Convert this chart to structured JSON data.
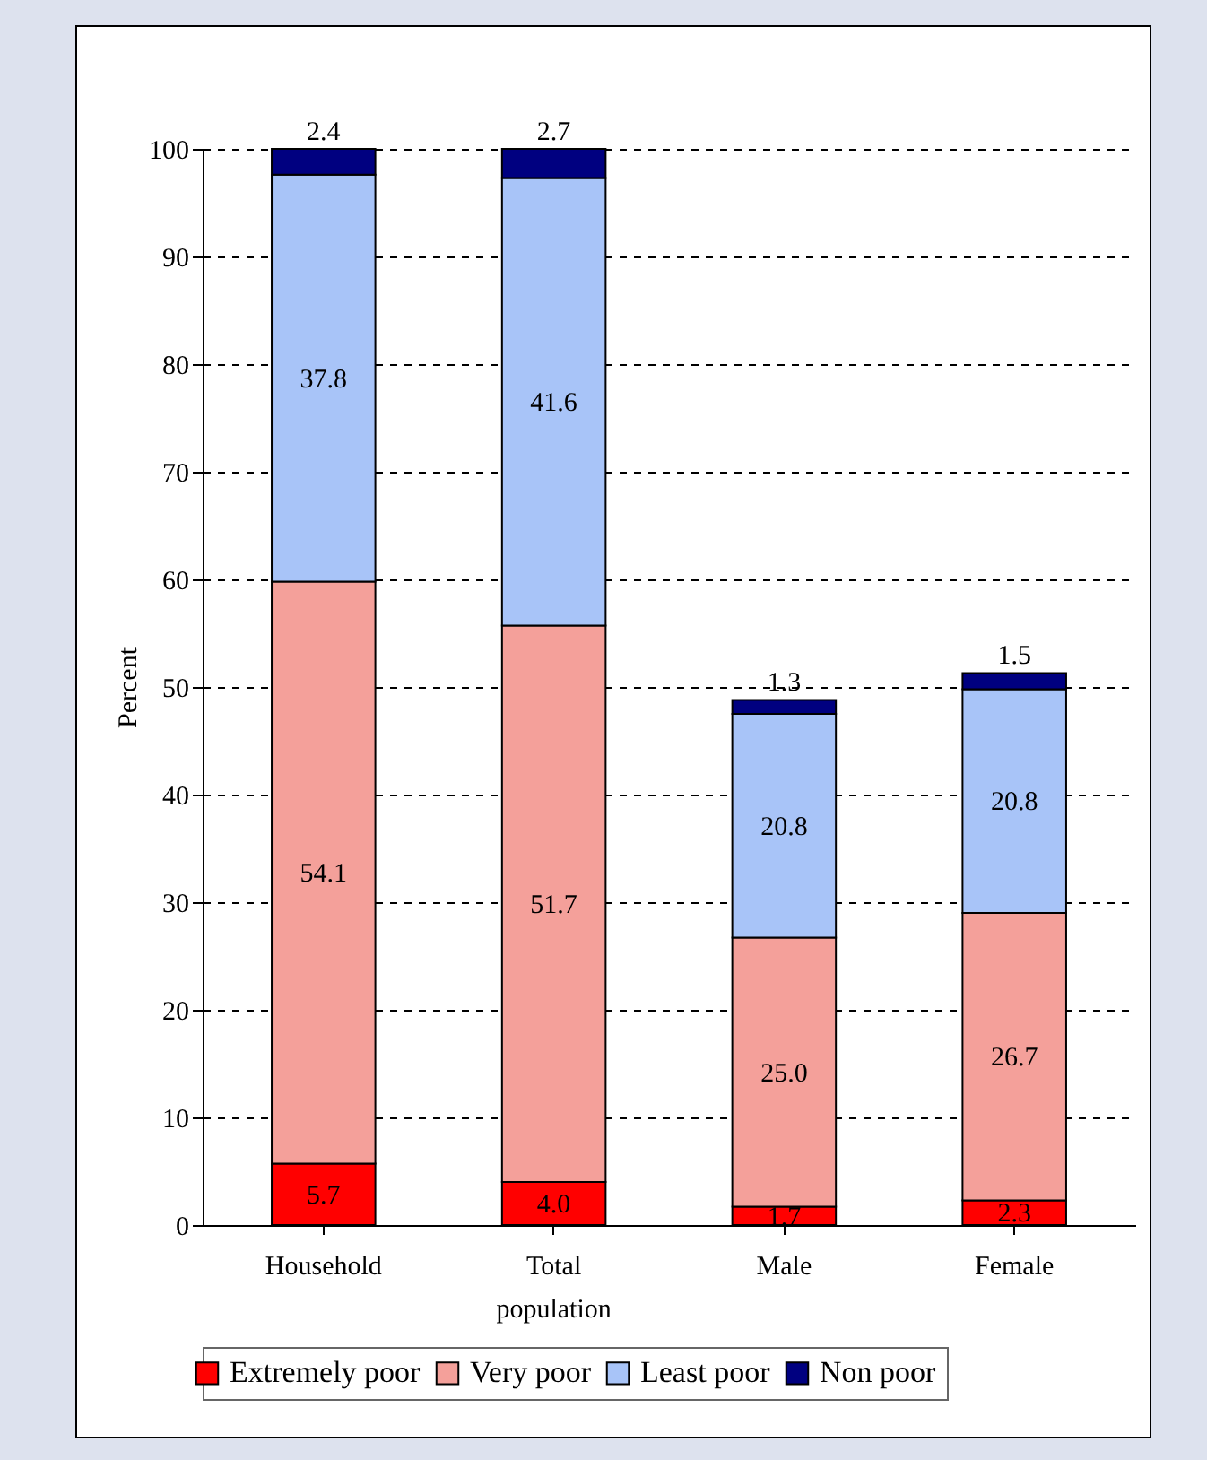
{
  "chart_data": {
    "type": "bar",
    "stacked": true,
    "ylabel": "Percent",
    "categories": [
      "Household",
      "Total population",
      "Male",
      "Female"
    ],
    "series": [
      {
        "name": "Extremely poor",
        "color": "#ff0000",
        "values": [
          5.7,
          4.0,
          1.7,
          2.3
        ],
        "value_labels": [
          "5.7",
          "4.0",
          "1.7",
          "2.3"
        ]
      },
      {
        "name": "Very poor",
        "color": "#f4a09a",
        "values": [
          54.1,
          51.7,
          25.0,
          26.7
        ],
        "value_labels": [
          "54.1",
          "51.7",
          "25.0",
          "26.7"
        ]
      },
      {
        "name": "Least poor",
        "color": "#a8c4f8",
        "values": [
          37.8,
          41.6,
          20.8,
          20.8
        ],
        "value_labels": [
          "37.8",
          "41.6",
          "20.8",
          "20.8"
        ]
      },
      {
        "name": "Non poor",
        "color": "#000080",
        "values": [
          2.4,
          2.7,
          1.3,
          1.5
        ],
        "value_labels": [
          "2.4",
          "2.7",
          "1.3",
          "1.5"
        ]
      }
    ],
    "ylim": [
      0,
      100
    ],
    "yticks": [
      0,
      10,
      20,
      30,
      40,
      50,
      60,
      70,
      80,
      90,
      100
    ],
    "grid": "y",
    "legend": "bottom"
  }
}
